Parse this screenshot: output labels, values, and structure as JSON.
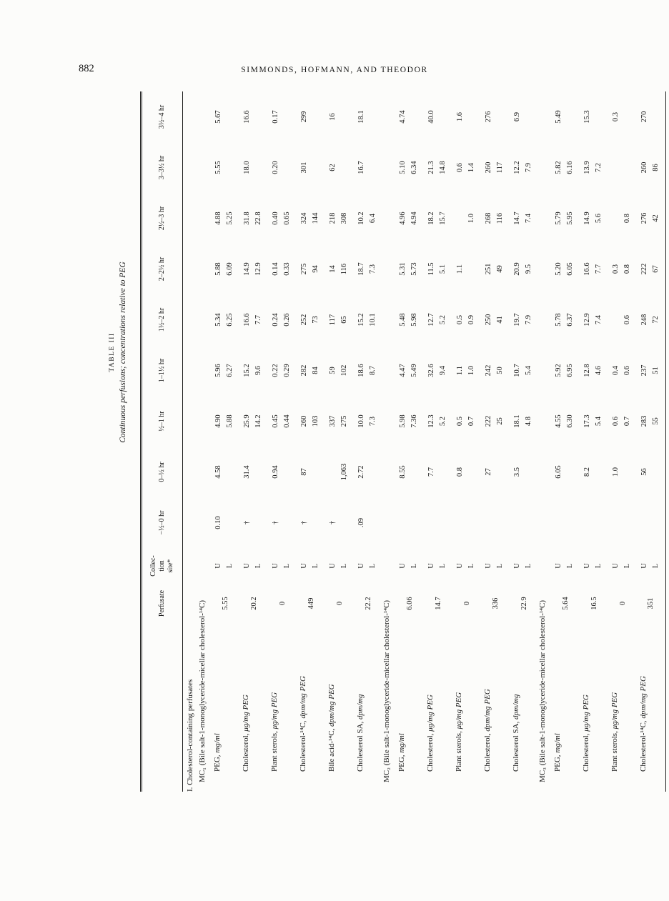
{
  "page": {
    "number": "882",
    "running_head": "SIMMONDS, HOFMANN, AND THEODOR"
  },
  "table": {
    "label": "TABLE III",
    "title": "Continuous perfusions; concentrations relative to PEG",
    "col_headers": [
      "Perfusate",
      "Collec-\ntion\nsite*",
      "−½–0 hr",
      "0–½ hr",
      "½–1 hr",
      "1–1½ hr",
      "1½–2 hr",
      "2–2½ hr",
      "2½–3 hr",
      "3–3½ hr",
      "3½–4 hr"
    ],
    "collection_site": {
      "upper": "U",
      "lower": "L"
    },
    "section_heading": "I. Cholesterol-containing perfusates",
    "groups": [
      {
        "heading": "MC₁ (Bile salt-1-monoglyceride-micellar cholesterol-¹⁴C)",
        "rows": [
          {
            "name": "PEG,",
            "unit": "mg/ml",
            "perfusate": "5.55",
            "U": [
              "0.10",
              "4.58",
              "4.90",
              "5.96",
              "5.34",
              "5.88",
              "4.88",
              "5.55",
              "5.67"
            ],
            "L": [
              "",
              "",
              "5.88",
              "6.27",
              "6.25",
              "6.09",
              "5.25",
              "",
              ""
            ]
          },
          {
            "name": "Cholesterol,",
            "unit": "μg/mg PEG",
            "perfusate": "20.2",
            "U": [
              "†",
              "31.4",
              "25.9",
              "15.2",
              "16.6",
              "14.9",
              "31.8",
              "18.0",
              "16.6"
            ],
            "L": [
              "",
              "",
              "14.2",
              "9.6",
              "7.7",
              "12.9",
              "22.8",
              "",
              ""
            ]
          },
          {
            "name": "Plant sterols,",
            "unit": "μg/mg PEG",
            "perfusate": "0",
            "U": [
              "†",
              "0.94",
              "0.45",
              "0.22",
              "0.24",
              "0.14",
              "0.40",
              "0.20",
              "0.17"
            ],
            "L": [
              "",
              "",
              "0.44",
              "0.29",
              "0.26",
              "0.33",
              "0.65",
              "",
              ""
            ]
          },
          {
            "name": "Cholesterol-¹⁴C,",
            "unit": "dpm/mg PEG",
            "perfusate": "449",
            "U": [
              "†",
              "87",
              "260",
              "282",
              "252",
              "275",
              "324",
              "301",
              "299"
            ],
            "L": [
              "",
              "",
              "103",
              "84",
              "73",
              "94",
              "144",
              "",
              ""
            ]
          },
          {
            "name": "Bile acid-¹⁴C,",
            "unit": "dpm/mg PEG",
            "perfusate": "0",
            "U": [
              "†",
              "",
              "337",
              "59",
              "117",
              "14",
              "218",
              "62",
              "16"
            ],
            "L": [
              "",
              "1,063",
              "275",
              "102",
              "65",
              "116",
              "308",
              "",
              ""
            ]
          },
          {
            "name": "Cholesterol SA,",
            "unit": "dpm/mg",
            "perfusate": "22.2",
            "U": [
              ".09",
              "2.72",
              "10.0",
              "18.6",
              "15.2",
              "18.7",
              "10.2",
              "16.7",
              "18.1"
            ],
            "L": [
              "",
              "",
              "7.3",
              "8.7",
              "10.1",
              "7.3",
              "6.4",
              "",
              ""
            ]
          }
        ]
      },
      {
        "heading": "MC₂ (Bile salt-1-monoglyceride-micellar cholesterol-¹⁴C)",
        "rows": [
          {
            "name": "PEG,",
            "unit": "mg/ml",
            "perfusate": "6.06",
            "U": [
              "",
              "8.55",
              "5.98",
              "4.47",
              "5.48",
              "5.31",
              "4.96",
              "5.10",
              "4.74"
            ],
            "L": [
              "",
              "",
              "7.36",
              "5.49",
              "5.98",
              "5.73",
              "4.94",
              "6.34",
              ""
            ]
          },
          {
            "name": "Cholesterol,",
            "unit": "μg/mg PEG",
            "perfusate": "14.7",
            "U": [
              "",
              "7.7",
              "12.3",
              "32.6",
              "12.7",
              "11.5",
              "18.2",
              "21.3",
              "40.0"
            ],
            "L": [
              "",
              "",
              "5.2",
              "9.4",
              "5.2",
              "5.1",
              "15.7",
              "14.8",
              ""
            ]
          },
          {
            "name": "Plant sterols,",
            "unit": "μg/mg PEG",
            "perfusate": "0",
            "U": [
              "",
              "0.8",
              "0.5",
              "1.1",
              "0.5",
              "1.1",
              "",
              "0.6",
              "1.6"
            ],
            "L": [
              "",
              "",
              "0.7",
              "1.0",
              "0.9",
              "",
              "1.0",
              "1.4",
              ""
            ]
          },
          {
            "name": "Cholesterol,",
            "unit": "dpm/mg PEG",
            "perfusate": "336",
            "U": [
              "",
              "27",
              "222",
              "242",
              "250",
              "251",
              "268",
              "260",
              "276"
            ],
            "L": [
              "",
              "",
              "25",
              "50",
              "41",
              "49",
              "116",
              "117",
              ""
            ]
          },
          {
            "name": "Cholesterol SA,",
            "unit": "dpm/mg",
            "perfusate": "22.9",
            "U": [
              "",
              "3.5",
              "18.1",
              "10.7",
              "19.7",
              "20.9",
              "14.7",
              "12.2",
              "6.9"
            ],
            "L": [
              "",
              "",
              "4.8",
              "5.4",
              "7.9",
              "9.5",
              "7.4",
              "7.9",
              ""
            ]
          }
        ]
      },
      {
        "heading": "MC₃ (Bile salt-1-monoglyceride-micellar cholesterol-¹⁴C)",
        "rows": [
          {
            "name": "PEG,",
            "unit": "mg/ml",
            "perfusate": "5.64",
            "U": [
              "",
              "6.05",
              "4.55",
              "5.92",
              "5.78",
              "5.20",
              "5.79",
              "5.82",
              "5.49"
            ],
            "L": [
              "",
              "",
              "6.30",
              "6.95",
              "6.37",
              "6.05",
              "5.95",
              "6.16",
              ""
            ]
          },
          {
            "name": "Cholesterol,",
            "unit": "μg/mg PEG",
            "perfusate": "16.5",
            "U": [
              "",
              "8.2",
              "17.3",
              "12.8",
              "12.9",
              "16.6",
              "14.9",
              "13.9",
              "15.3"
            ],
            "L": [
              "",
              "",
              "5.4",
              "4.6",
              "7.4",
              "7.7",
              "5.6",
              "7.2",
              ""
            ]
          },
          {
            "name": "Plant sterols,",
            "unit": "μg/mg PEG",
            "perfusate": "0",
            "U": [
              "",
              "1.0",
              "0.6",
              "0.4",
              "",
              "0.3",
              "",
              "",
              "0.3"
            ],
            "L": [
              "",
              "",
              "0.7",
              "0.6",
              "0.6",
              "0.8",
              "0.8",
              "",
              ""
            ]
          },
          {
            "name": "Cholesterol-¹⁴C,",
            "unit": "dpm/mg PEG",
            "perfusate": "351",
            "U": [
              "",
              "56",
              "283",
              "237",
              "248",
              "222",
              "276",
              "260",
              "270"
            ],
            "L": [
              "",
              "",
              "55",
              "51",
              "72",
              "67",
              "42",
              "86",
              ""
            ]
          }
        ]
      }
    ]
  }
}
